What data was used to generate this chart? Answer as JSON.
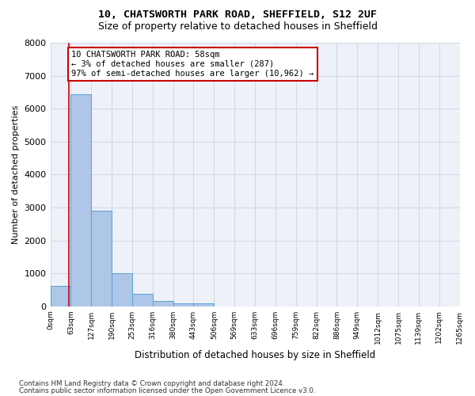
{
  "title1": "10, CHATSWORTH PARK ROAD, SHEFFIELD, S12 2UF",
  "title2": "Size of property relative to detached houses in Sheffield",
  "xlabel": "Distribution of detached houses by size in Sheffield",
  "ylabel": "Number of detached properties",
  "bar_color": "#aec6e8",
  "bar_edge_color": "#5a9fd4",
  "bin_labels": [
    "0sqm",
    "63sqm",
    "127sqm",
    "190sqm",
    "253sqm",
    "316sqm",
    "380sqm",
    "443sqm",
    "506sqm",
    "569sqm",
    "633sqm",
    "696sqm",
    "759sqm",
    "822sqm",
    "886sqm",
    "949sqm",
    "1012sqm",
    "1075sqm",
    "1139sqm",
    "1202sqm",
    "1265sqm"
  ],
  "bar_values": [
    620,
    6430,
    2900,
    1000,
    380,
    170,
    100,
    80,
    0,
    0,
    0,
    0,
    0,
    0,
    0,
    0,
    0,
    0,
    0,
    0
  ],
  "property_line_x": 58,
  "annotation_line1": "10 CHATSWORTH PARK ROAD: 58sqm",
  "annotation_line2": "← 3% of detached houses are smaller (287)",
  "annotation_line3": "97% of semi-detached houses are larger (10,962) →",
  "annotation_box_color": "#ffffff",
  "annotation_box_edge_color": "#cc0000",
  "ylim": [
    0,
    8000
  ],
  "yticks": [
    0,
    1000,
    2000,
    3000,
    4000,
    5000,
    6000,
    7000,
    8000
  ],
  "grid_color": "#d0d8e8",
  "background_color": "#eef2f8",
  "footer1": "Contains HM Land Registry data © Crown copyright and database right 2024.",
  "footer2": "Contains public sector information licensed under the Open Government Licence v3.0.",
  "bin_width": 63
}
